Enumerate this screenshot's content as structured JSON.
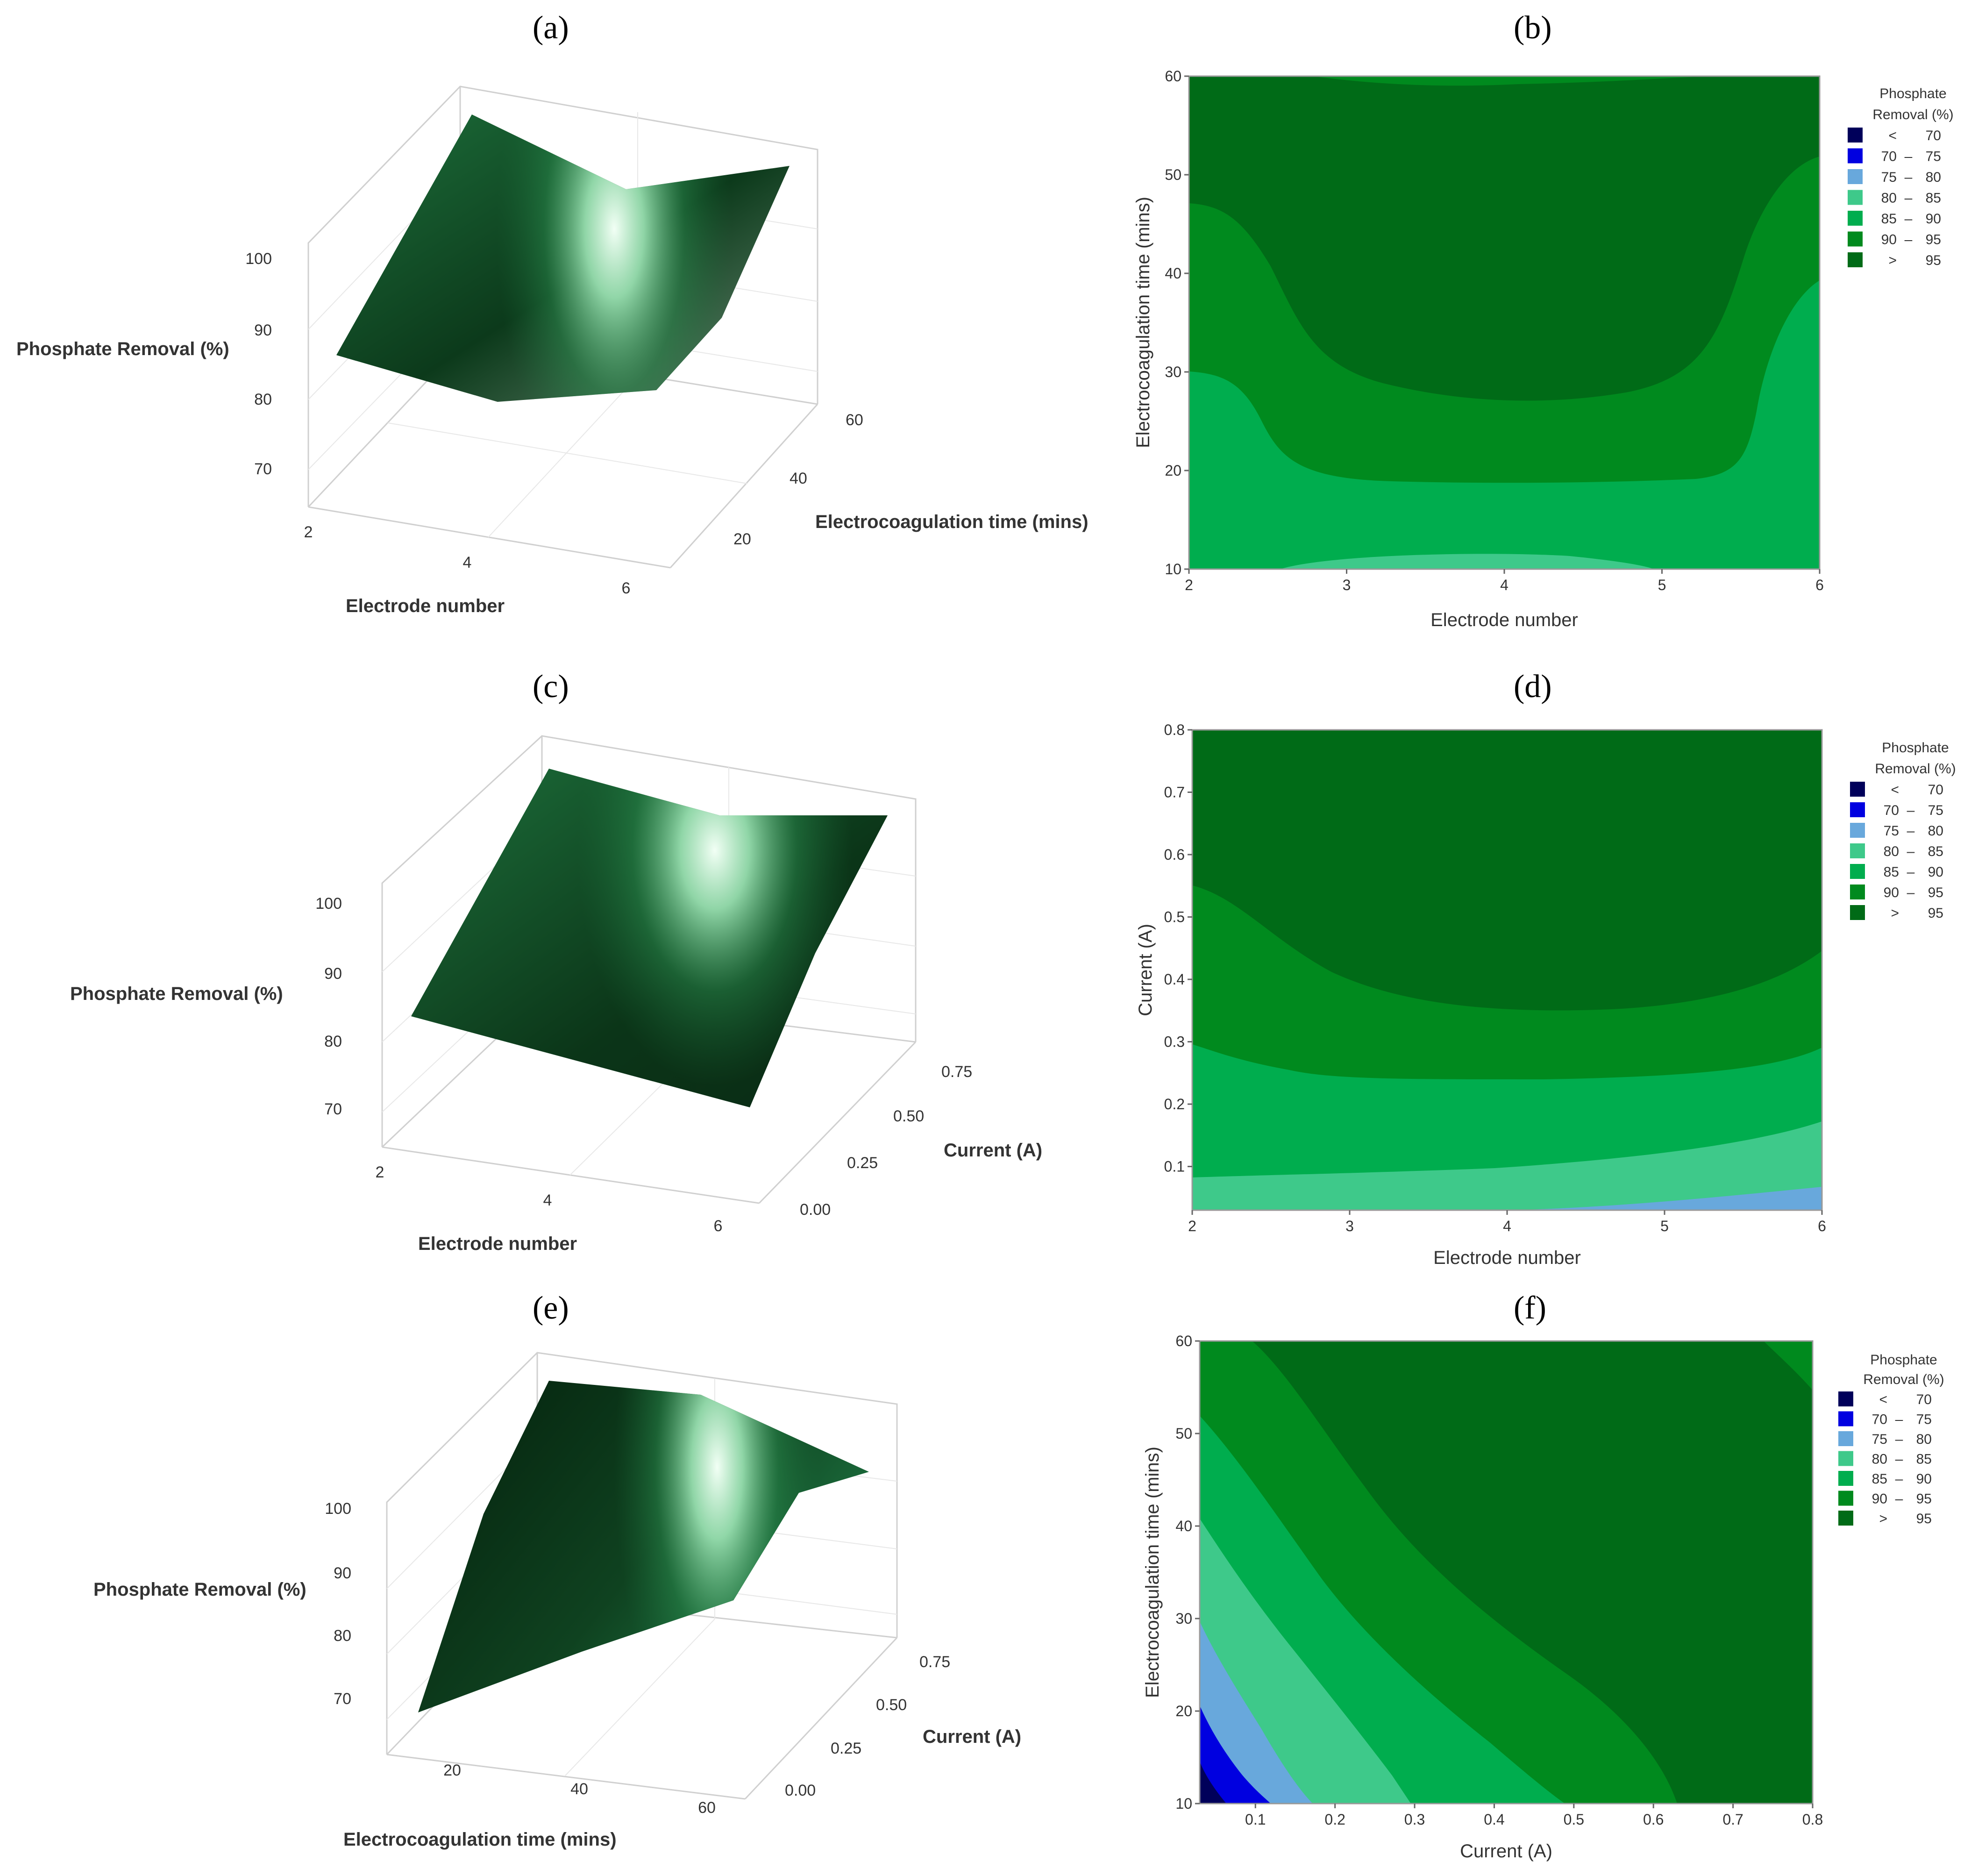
{
  "colors": {
    "lt70": "#00005a",
    "c70_75": "#0000e0",
    "c75_80": "#68a8dc",
    "c80_85": "#3ec98a",
    "c85_90": "#00ad4e",
    "c90_95": "#008a1e",
    "gt95": "#006b17",
    "surface": "#1a6b39",
    "surface_dark": "#06240f",
    "highlight": "#f0fff4"
  },
  "legend": {
    "title_line1": "Phosphate",
    "title_line2": "Removal (%)",
    "items": [
      {
        "low": "<",
        "high": "70",
        "color_key": "lt70"
      },
      {
        "low": "70",
        "sep": "–",
        "high": "75",
        "color_key": "c70_75"
      },
      {
        "low": "75",
        "sep": "–",
        "high": "80",
        "color_key": "c75_80"
      },
      {
        "low": "80",
        "sep": "–",
        "high": "85",
        "color_key": "c80_85"
      },
      {
        "low": "85",
        "sep": "–",
        "high": "90",
        "color_key": "c85_90"
      },
      {
        "low": "90",
        "sep": "–",
        "high": "95",
        "color_key": "c90_95"
      },
      {
        "low": ">",
        "high": "95",
        "color_key": "gt95"
      }
    ]
  },
  "panels": [
    {
      "letter": "(a)"
    },
    {
      "letter": "(b)"
    },
    {
      "letter": "(c)"
    },
    {
      "letter": "(d)"
    },
    {
      "letter": "(e)"
    },
    {
      "letter": "(f)"
    }
  ],
  "chart_data": [
    {
      "panel": "a",
      "type": "surface",
      "zlabel": "Phosphate Removal (%)",
      "xlabel": "Electrode number",
      "ylabel": "Electrocoagulation time (mins)",
      "zticks": [
        "100",
        "90",
        "80",
        "70"
      ],
      "xticks": [
        "2",
        "4",
        "6"
      ],
      "yticks": [
        "20",
        "40",
        "60"
      ]
    },
    {
      "panel": "b",
      "type": "contour",
      "xlabel": "Electrode number",
      "ylabel": "Electrocoagulation time (mins)",
      "xlim": [
        2,
        6
      ],
      "ylim": [
        10,
        60
      ],
      "xticks": [
        "2",
        "3",
        "4",
        "5",
        "6"
      ],
      "yticks": [
        "10",
        "20",
        "30",
        "40",
        "50",
        "60"
      ]
    },
    {
      "panel": "c",
      "type": "surface",
      "zlabel": "Phosphate Removal (%)",
      "xlabel": "Electrode number",
      "ylabel": "Current (A)",
      "zticks": [
        "100",
        "90",
        "80",
        "70"
      ],
      "xticks": [
        "2",
        "4",
        "6"
      ],
      "yticks": [
        "0.00",
        "0.25",
        "0.50",
        "0.75"
      ]
    },
    {
      "panel": "d",
      "type": "contour",
      "xlabel": "Electrode number",
      "ylabel": "Current (A)",
      "xlim": [
        2,
        6
      ],
      "ylim": [
        0.03,
        0.8
      ],
      "xticks": [
        "2",
        "3",
        "4",
        "5",
        "6"
      ],
      "yticks": [
        "0.1",
        "0.2",
        "0.3",
        "0.4",
        "0.5",
        "0.6",
        "0.7",
        "0.8"
      ]
    },
    {
      "panel": "e",
      "type": "surface",
      "zlabel": "Phosphate Removal (%)",
      "xlabel": "Electrocoagulation time (mins)",
      "ylabel": "Current (A)",
      "zticks": [
        "100",
        "90",
        "80",
        "70"
      ],
      "xticks": [
        "20",
        "40",
        "60"
      ],
      "yticks": [
        "0.00",
        "0.25",
        "0.50",
        "0.75"
      ]
    },
    {
      "panel": "f",
      "type": "contour",
      "xlabel": "Current (A)",
      "ylabel": "Electrocoagulation time (mins)",
      "xlim": [
        0.03,
        0.8
      ],
      "ylim": [
        10,
        60
      ],
      "xticks": [
        "0.1",
        "0.2",
        "0.3",
        "0.4",
        "0.5",
        "0.6",
        "0.7",
        "0.8"
      ],
      "yticks": [
        "10",
        "20",
        "30",
        "40",
        "50",
        "60"
      ]
    }
  ]
}
